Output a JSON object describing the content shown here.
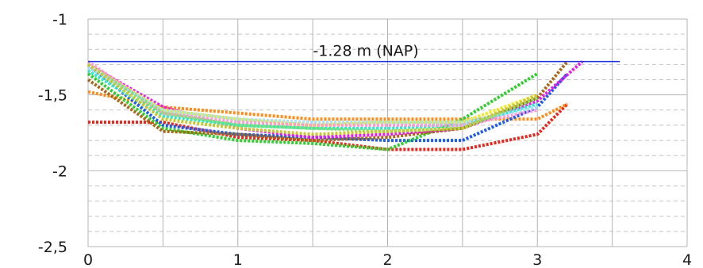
{
  "chart_data": {
    "type": "line",
    "title": "",
    "xlabel": "",
    "ylabel": "",
    "xlim": [
      0,
      4
    ],
    "ylim": [
      -2.5,
      -1
    ],
    "xticks": [
      0,
      1,
      2,
      3,
      4
    ],
    "yticks": [
      -1,
      -1.5,
      -2,
      -2.5
    ],
    "x_tick_labels": [
      "0",
      "1",
      "2",
      "3",
      "4"
    ],
    "y_tick_labels": [
      "-1",
      "-1,5",
      "-2",
      "-2,5"
    ],
    "grid": true,
    "legend": "none",
    "reference_line": {
      "y": -1.28,
      "x_range": [
        0,
        3.55
      ],
      "label": "-1.28 m (NAP)",
      "color": "#1f2fdc"
    },
    "series": [
      {
        "color": "#e8261c",
        "x": [
          0,
          0.5,
          1,
          1.5,
          2,
          2.5,
          3,
          3.2
        ],
        "y": [
          -1.68,
          -1.68,
          -1.78,
          -1.8,
          -1.86,
          -1.86,
          -1.76,
          -1.56
        ]
      },
      {
        "color": "#ff8c1a",
        "x": [
          0,
          0.5,
          1,
          1.5,
          2,
          2.5,
          3,
          3.2
        ],
        "y": [
          -1.48,
          -1.58,
          -1.62,
          -1.66,
          -1.66,
          -1.66,
          -1.66,
          -1.56
        ]
      },
      {
        "color": "#1f5ce8",
        "x": [
          0,
          0.5,
          1,
          1.5,
          2,
          2.5,
          3,
          3.2
        ],
        "y": [
          -1.3,
          -1.7,
          -1.76,
          -1.78,
          -1.8,
          -1.8,
          -1.58,
          -1.36
        ]
      },
      {
        "color": "#2fcf2f",
        "x": [
          0,
          0.5,
          1,
          1.5,
          2,
          2.5,
          3
        ],
        "y": [
          -1.36,
          -1.72,
          -1.8,
          -1.82,
          -1.86,
          -1.66,
          -1.36
        ]
      },
      {
        "color": "#a86a1a",
        "x": [
          0,
          0.5,
          1,
          1.5,
          2,
          2.5,
          3,
          3.2
        ],
        "y": [
          -1.4,
          -1.74,
          -1.76,
          -1.8,
          -1.78,
          -1.72,
          -1.52,
          -1.28
        ]
      },
      {
        "color": "#e81ce8",
        "x": [
          0,
          0.5,
          1,
          1.5,
          2,
          2.5,
          3,
          3.3
        ],
        "y": [
          -1.3,
          -1.58,
          -1.72,
          -1.78,
          -1.76,
          -1.72,
          -1.54,
          -1.28
        ]
      },
      {
        "color": "#2ee8c8",
        "x": [
          0,
          0.5,
          1,
          1.5,
          2,
          2.5,
          3
        ],
        "y": [
          -1.34,
          -1.64,
          -1.7,
          -1.72,
          -1.72,
          -1.7,
          -1.56
        ]
      },
      {
        "color": "#f0e820",
        "x": [
          0,
          0.5,
          1,
          1.5,
          2,
          2.5,
          3
        ],
        "y": [
          -1.3,
          -1.6,
          -1.66,
          -1.7,
          -1.68,
          -1.68,
          -1.5
        ]
      },
      {
        "color": "#ff9ad8",
        "x": [
          0,
          0.5,
          1,
          1.5,
          2,
          2.5,
          3
        ],
        "y": [
          -1.28,
          -1.62,
          -1.68,
          -1.7,
          -1.7,
          -1.7,
          -1.6
        ]
      },
      {
        "color": "#a8e0f8",
        "x": [
          0,
          0.5,
          1,
          1.5,
          2,
          2.5,
          3
        ],
        "y": [
          -1.32,
          -1.6,
          -1.66,
          -1.68,
          -1.68,
          -1.68,
          -1.58
        ]
      },
      {
        "color": "#88e070",
        "x": [
          0,
          0.5,
          1,
          1.5,
          2,
          2.5,
          3
        ],
        "y": [
          -1.3,
          -1.62,
          -1.7,
          -1.72,
          -1.74,
          -1.72,
          -1.52
        ]
      },
      {
        "color": "#c8c832",
        "x": [
          0,
          0.5,
          1,
          1.5,
          2,
          2.5,
          3
        ],
        "y": [
          -1.3,
          -1.66,
          -1.72,
          -1.76,
          -1.74,
          -1.72,
          -1.5
        ]
      }
    ]
  }
}
